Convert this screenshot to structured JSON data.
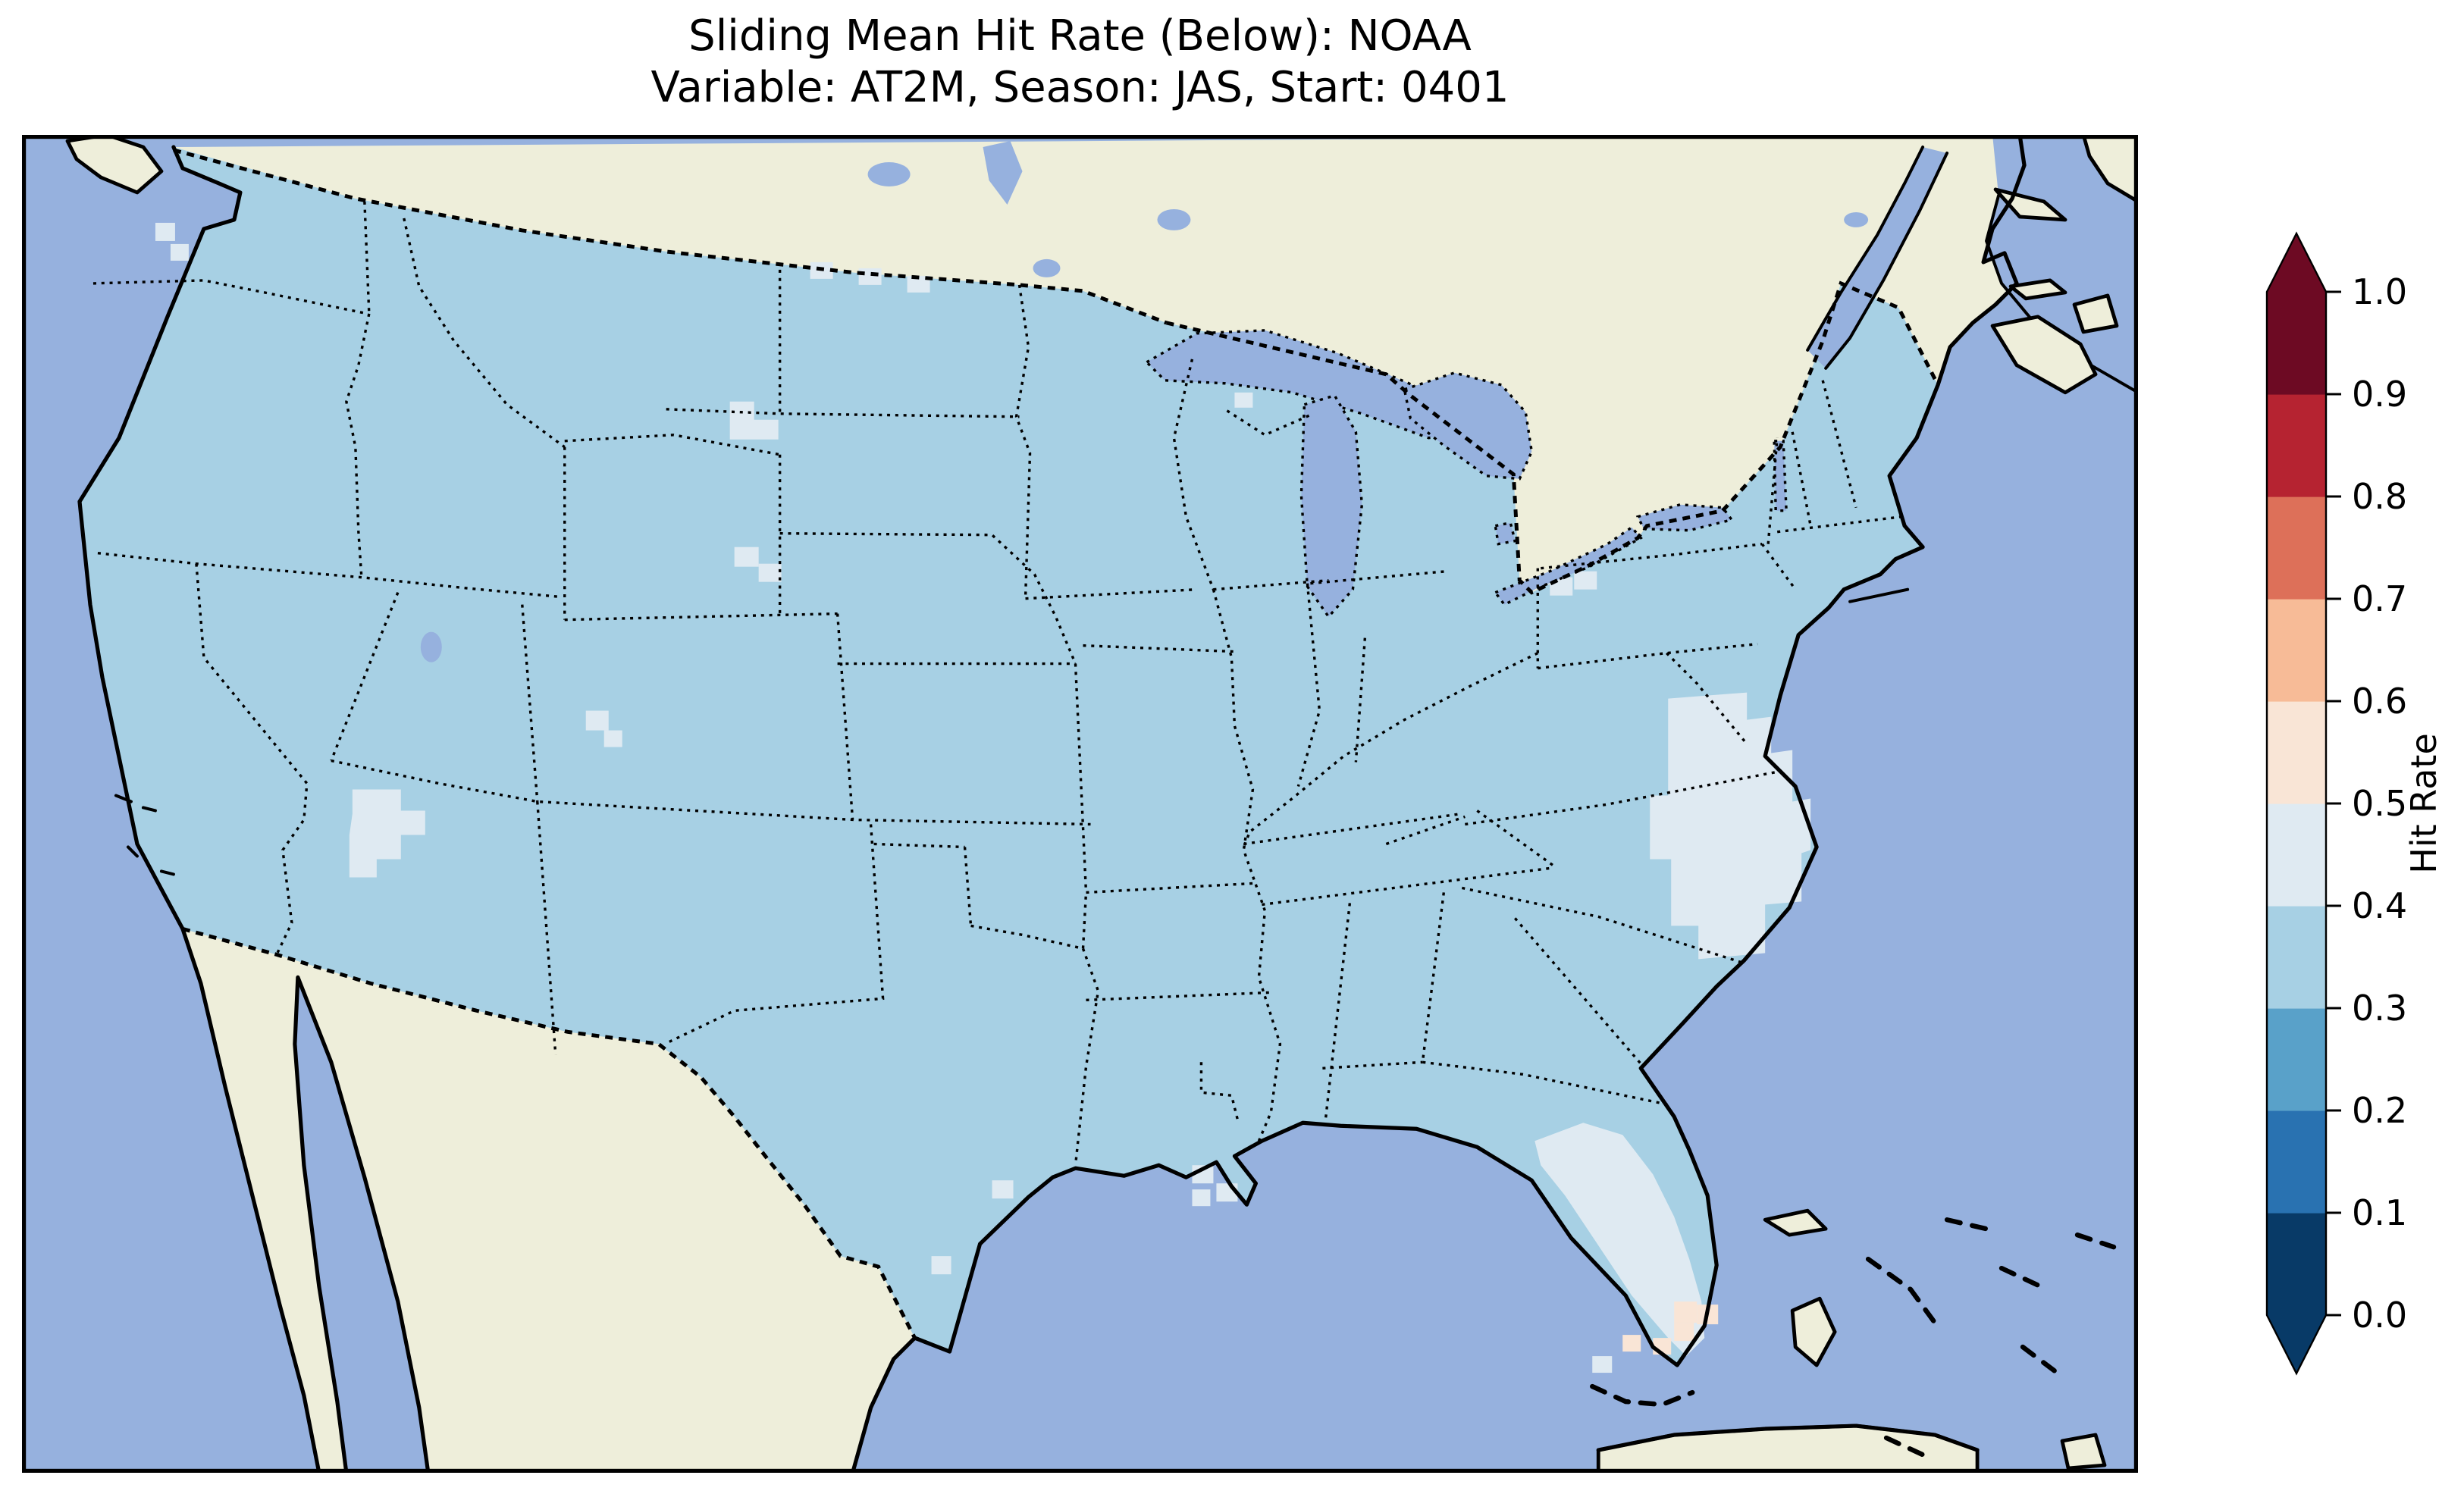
{
  "title": {
    "line1": "Sliding Mean Hit Rate (Below): NOAA",
    "line2": "Variable: AT2M, Season: JAS, Start: 0401"
  },
  "colorbar": {
    "label": "Hit Rate",
    "ticks": [
      "0.0",
      "0.1",
      "0.2",
      "0.3",
      "0.4",
      "0.5",
      "0.6",
      "0.7",
      "0.8",
      "0.9",
      "1.0"
    ],
    "bin_edges": [
      0.0,
      0.1,
      0.2,
      0.3,
      0.4,
      0.5,
      0.6,
      0.7,
      0.8,
      0.9,
      1.0
    ],
    "bin_colors_bottom_to_top": [
      "#083a67",
      "#2972b1",
      "#59a1c9",
      "#a7d0e4",
      "#dfeaf2",
      "#f9e5d6",
      "#f7bb97",
      "#dd7059",
      "#b62331",
      "#6d0a23"
    ],
    "under_arrow_color": "#083a67",
    "over_arrow_color": "#6d0a23"
  },
  "map": {
    "colors": {
      "ocean": "#96b1de",
      "land": "#eeeeda",
      "lakes": "#96b1de",
      "coastline": "#000000",
      "hit_rate_0_3_to_0_4": "#a7d0e4",
      "hit_rate_0_4_to_0_5": "#dfeaf2",
      "hit_rate_0_5_to_0_6": "#f9e5d6"
    },
    "region_shown": "Contiguous United States with surrounding Canada, Mexico, Gulf of Mexico, Bahamas and Cuba",
    "observations": {
      "dominant_hit_rate_bin": "0.3–0.4 over almost all of the CONUS",
      "lighter_bin_0_4_to_0_5_patches": [
        "central Arizona",
        "eastern North Carolina and coastal Virginia",
        "Florida peninsula",
        "northwestern South Dakota",
        "eastern South Dakota",
        "central Wyoming",
        "Lake Erie south shore",
        "Puget Sound area",
        "Mississippi delta",
        "Texas coast",
        "cells along the US–Canada border in North Dakota / Minnesota",
        "Florida Keys"
      ],
      "pink_bin_0_5_to_0_6_patches": [
        "southern tip of Florida",
        "Florida Keys"
      ]
    }
  },
  "chart_data": {
    "type": "heatmap",
    "title": "Sliding Mean Hit Rate (Below): NOAA",
    "subtitle": "Variable: AT2M, Season: JAS, Start: 0401",
    "colorbar_label": "Hit Rate",
    "value_range": [
      0.0,
      1.0
    ],
    "bin_edges": [
      0.0,
      0.1,
      0.2,
      0.3,
      0.4,
      0.5,
      0.6,
      0.7,
      0.8,
      0.9,
      1.0
    ],
    "legend_position": "right vertical colorbar with over/under arrows",
    "region": "Contiguous United States",
    "dominant_value_range": [
      0.3,
      0.4
    ],
    "notable_regions": [
      {
        "area": "Florida peninsula",
        "value_range": [
          0.4,
          0.5
        ]
      },
      {
        "area": "South Florida tip and Keys",
        "value_range": [
          0.5,
          0.6
        ]
      },
      {
        "area": "Eastern North Carolina / coastal Virginia",
        "value_range": [
          0.4,
          0.5
        ]
      },
      {
        "area": "Central Arizona",
        "value_range": [
          0.4,
          0.5
        ]
      },
      {
        "area": "Western and eastern South Dakota (small patches)",
        "value_range": [
          0.4,
          0.5
        ]
      },
      {
        "area": "Lake Erie south shore",
        "value_range": [
          0.4,
          0.5
        ]
      }
    ]
  }
}
